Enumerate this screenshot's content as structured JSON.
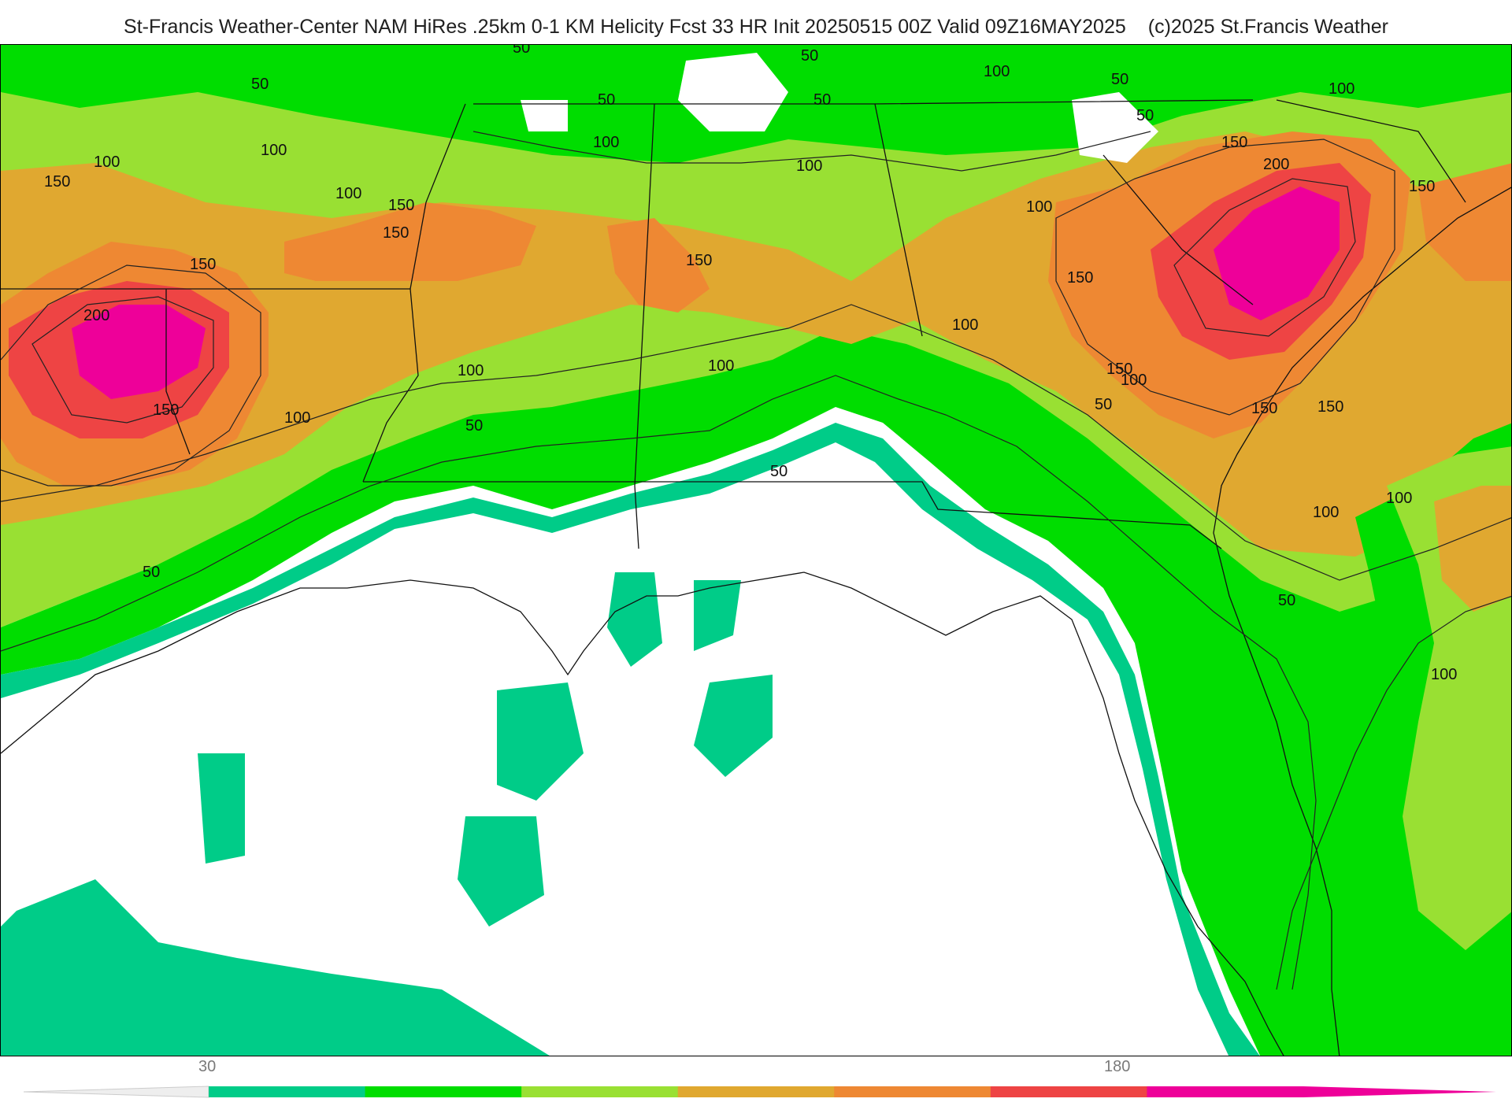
{
  "header": {
    "title": "St-Francis Weather-Center NAM HiRes .25km 0-1 KM Helicity Fcst 33 HR Init 20250515 00Z  Valid 09Z16MAY2025",
    "copyright": "(c)2025 St.Francis Weather"
  },
  "colors": {
    "teal": "#00cc88",
    "green": "#00dd00",
    "lightgreen": "#99e033",
    "gold": "#e0a830",
    "orange": "#ee8833",
    "red": "#ee4444",
    "magenta": "#ee0099"
  },
  "colorbar": {
    "ticks": [
      "30",
      "180"
    ],
    "segments": [
      "#00cc88",
      "#00dd00",
      "#99e033",
      "#e0a830",
      "#ee8833",
      "#ee4444",
      "#ee0099"
    ]
  },
  "contour_labels": [
    "50",
    "100",
    "50",
    "100",
    "150",
    "100",
    "100",
    "150",
    "150",
    "150",
    "200",
    "150",
    "50",
    "100",
    "100",
    "50",
    "100",
    "50",
    "150",
    "50",
    "100",
    "100",
    "100",
    "150",
    "50",
    "50",
    "100",
    "200",
    "150",
    "150",
    "150",
    "100",
    "150",
    "150",
    "100",
    "50",
    "100",
    "50",
    "100",
    "100",
    "50",
    "50"
  ]
}
